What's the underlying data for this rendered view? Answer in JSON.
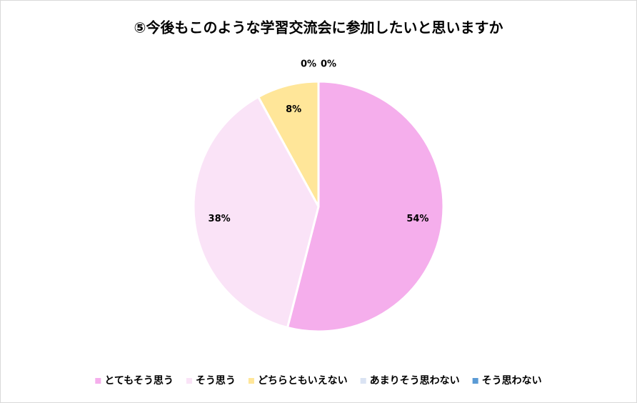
{
  "chart_data": {
    "type": "pie",
    "title": "⑤今後もこのような学習交流会に参加したいと思いますか",
    "categories": [
      "とてもそう思う",
      "そう思う",
      "どちらともいえない",
      "あまりそう思わない",
      "そう思わない"
    ],
    "values": [
      54,
      38,
      8,
      0,
      0
    ],
    "value_labels": [
      "54%",
      "38%",
      "8%",
      "0%",
      "0%"
    ],
    "colors": [
      "#f5aeec",
      "#fae3f7",
      "#ffe699",
      "#dae3f3",
      "#5b9bd5"
    ],
    "legend": "bottom"
  }
}
